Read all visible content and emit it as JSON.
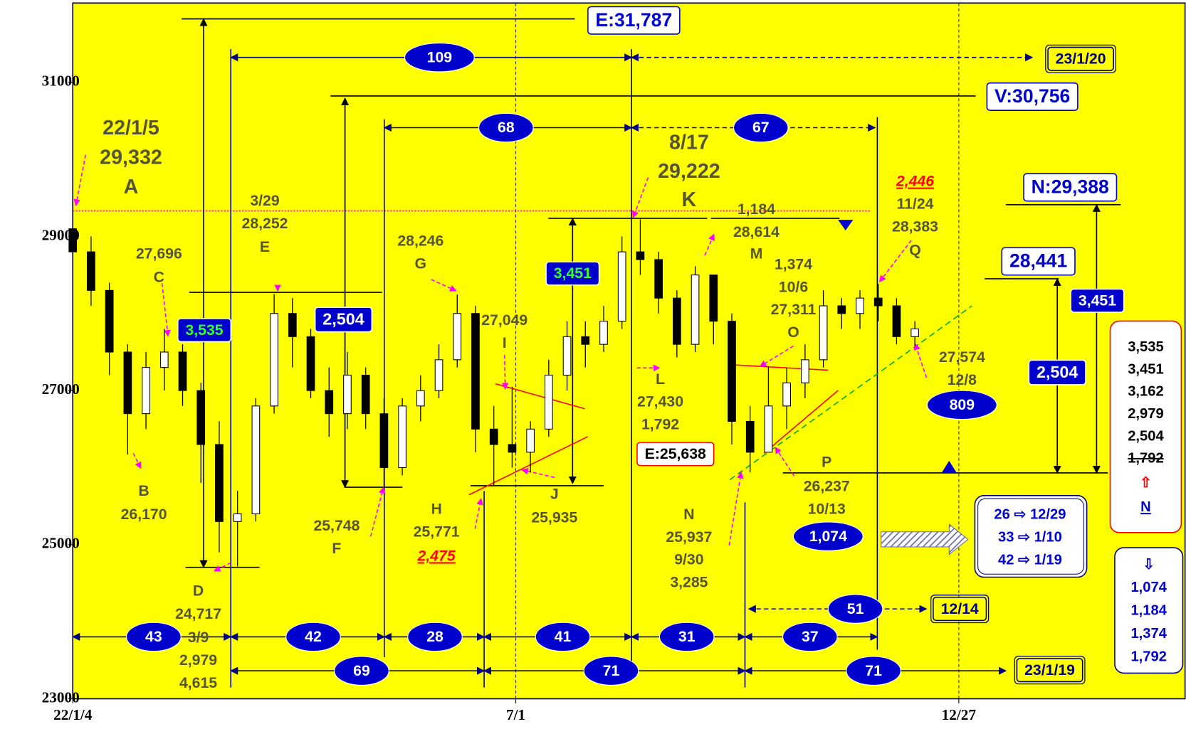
{
  "chart_data": {
    "type": "candlestick",
    "x": [
      0,
      5,
      10,
      15,
      20,
      25,
      30,
      35,
      40,
      45,
      50,
      55,
      60,
      65,
      70,
      75,
      80,
      85,
      90,
      95,
      100,
      105,
      110,
      115,
      120,
      125,
      130,
      135,
      140,
      145,
      150,
      155,
      160,
      165,
      170,
      175,
      180,
      185,
      190,
      195,
      200,
      205,
      210,
      215,
      220,
      225,
      230
    ],
    "open": [
      29100,
      28800,
      28300,
      27500,
      26700,
      27300,
      27500,
      27000,
      26300,
      25300,
      25400,
      26800,
      28000,
      27700,
      27000,
      26700,
      27200,
      26700,
      26000,
      26800,
      27000,
      27400,
      28000,
      26500,
      26300,
      26200,
      26500,
      27200,
      27700,
      27600,
      27900,
      28800,
      28700,
      28200,
      27600,
      28500,
      27900,
      26600,
      26200,
      26800,
      27100,
      27400,
      28100,
      28000,
      28200,
      28100,
      27700
    ],
    "high": [
      29400,
      29000,
      28400,
      27600,
      27500,
      27800,
      27600,
      27100,
      26600,
      25700,
      26900,
      28252,
      28200,
      27800,
      27300,
      27500,
      27300,
      26900,
      26900,
      27200,
      27600,
      28246,
      28100,
      26800,
      27049,
      26600,
      27400,
      27900,
      27900,
      28100,
      29000,
      29222,
      28800,
      28300,
      28614,
      28500,
      28000,
      26800,
      27311,
      27300,
      27600,
      28300,
      28200,
      28300,
      28383,
      28200,
      27900
    ],
    "low": [
      28700,
      28100,
      27200,
      26170,
      26500,
      27000,
      26800,
      25800,
      24900,
      24717,
      25300,
      26700,
      27300,
      26900,
      26400,
      26500,
      26500,
      25748,
      25900,
      26600,
      26900,
      27300,
      26200,
      25771,
      26000,
      25935,
      26400,
      27000,
      27300,
      27500,
      27800,
      28500,
      28000,
      27430,
      27500,
      27600,
      26300,
      25937,
      26237,
      26500,
      26900,
      27300,
      27800,
      27800,
      27900,
      27600,
      27574
    ],
    "close": [
      28800,
      28300,
      27500,
      26700,
      27300,
      27500,
      27000,
      26300,
      25300,
      25400,
      26800,
      28000,
      27700,
      27000,
      26700,
      27200,
      26700,
      26000,
      26800,
      27000,
      27400,
      28000,
      26500,
      26300,
      26200,
      26500,
      27200,
      27700,
      27600,
      27900,
      28800,
      28700,
      28200,
      27600,
      28500,
      27900,
      26600,
      26200,
      26800,
      27100,
      27400,
      28100,
      28000,
      28200,
      28100,
      27700,
      27800
    ],
    "up_color": "#ffffff",
    "down_color": "#000000",
    "background": "#ffff00",
    "xlim": [
      0,
      304
    ],
    "xticks": [
      {
        "value": 0,
        "label": "22/1/4"
      },
      {
        "value": 121,
        "label": "7/1"
      },
      {
        "value": 242,
        "label": "12/27"
      }
    ],
    "xgrid": true,
    "ylim": [
      23000,
      32000
    ],
    "yticks": [
      23000,
      25000,
      27000,
      29000,
      31000
    ],
    "hlines": [
      29332
    ],
    "labels": [
      "22/1/5",
      "29,332",
      "A",
      "27,696",
      "C",
      "B",
      "26,170",
      "D",
      "24,717",
      "3/9",
      "2,979",
      "4,615",
      "3/29",
      "28,252",
      "E",
      "28,246",
      "G",
      "25,748",
      "F",
      "27,049",
      "I",
      "H",
      "25,771",
      "2,475",
      "J",
      "25,935",
      "8/17",
      "29,222",
      "K",
      "1,184",
      "28,614",
      "M",
      "1,374",
      "10/6",
      "27,311",
      "O",
      "L",
      "27,430",
      "1,792",
      "N",
      "25,937",
      "9/30",
      "3,285",
      "P",
      "26,237",
      "10/13",
      "2,446",
      "11/24",
      "28,383",
      "Q",
      "27,574",
      "12/8"
    ],
    "ellipses": [
      "43",
      "42",
      "28",
      "41",
      "31",
      "37",
      "69",
      "71",
      "71",
      "109",
      "68",
      "67",
      "51",
      "809",
      "1,074"
    ],
    "boxes": [
      "E:31,787",
      "V:30,756",
      "N:29,388",
      "28,441",
      "23/1/20",
      "12/14",
      "23/1/19",
      "E:25,638"
    ],
    "value_boxes": [
      "3,535",
      "3,451",
      "2,504",
      "2,504",
      "3,451"
    ],
    "red_box_list": [
      "3,535",
      "3,451",
      "3,162",
      "2,979",
      "2,504",
      "1,792",
      "⇧",
      "N"
    ],
    "mid_box_list": [
      "26 ⇨ 12/29",
      "33 ⇨  1/10",
      "42 ⇨  1/19"
    ],
    "right_box_list": [
      "⇩",
      "1,074",
      "1,184",
      "1,374",
      "1,792"
    ]
  }
}
